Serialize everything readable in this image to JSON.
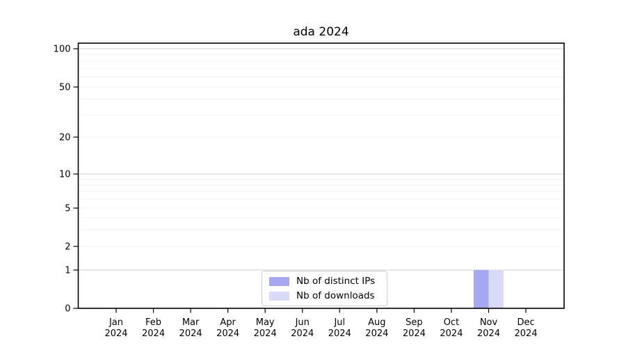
{
  "chart_data": {
    "type": "bar",
    "title": "ada 2024",
    "categories": [
      "Jan 2024",
      "Feb 2024",
      "Mar 2024",
      "Apr 2024",
      "May 2024",
      "Jun 2024",
      "Jul 2024",
      "Aug 2024",
      "Sep 2024",
      "Oct 2024",
      "Nov 2024",
      "Dec 2024"
    ],
    "series": [
      {
        "name": "Nb of distinct IPs",
        "color": "#a8a8f2",
        "values": [
          0,
          0,
          0,
          0,
          0,
          0,
          0,
          0,
          0,
          0,
          1,
          0
        ]
      },
      {
        "name": "Nb of downloads",
        "color": "#d9d9f8",
        "values": [
          0,
          0,
          0,
          0,
          0,
          0,
          0,
          0,
          0,
          0,
          1,
          0
        ]
      }
    ],
    "y_scale": "symlog",
    "ylim": [
      0,
      100
    ],
    "y_ticks": [
      0,
      1,
      2,
      5,
      10,
      20,
      50,
      100
    ],
    "y_major_gridlines": [
      1,
      10,
      100
    ],
    "y_minor_gridlines": [
      2,
      3,
      4,
      5,
      6,
      7,
      8,
      9,
      20,
      30,
      40,
      50,
      60,
      70,
      80,
      90
    ],
    "grid": true,
    "legend_position": "lower center",
    "colors": {
      "axis": "#000000",
      "major_grid": "#d9d9d9",
      "minor_grid": "#f0f0f0",
      "tick_label": "#000000",
      "legend_border": "#cccccc"
    }
  }
}
